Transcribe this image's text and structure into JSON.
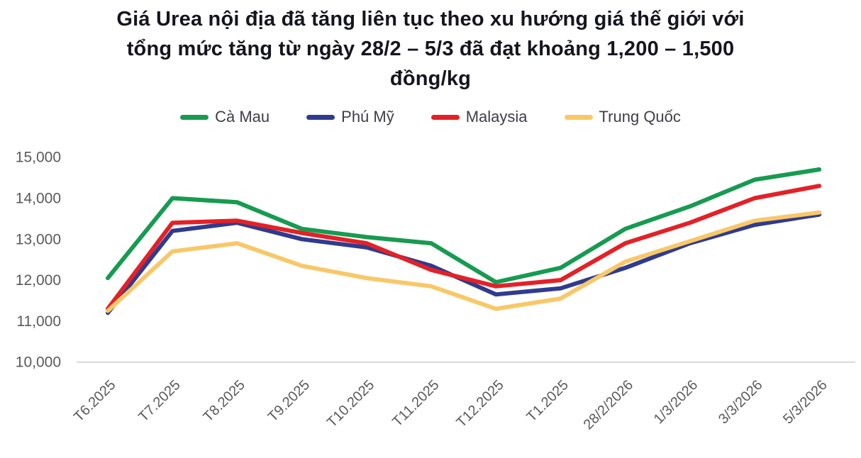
{
  "chart_data": {
    "type": "line",
    "title": "Giá Urea nội địa đã tăng liên tục theo xu hướng giá thế giới với\ntổng mức tăng từ ngày 28/2 – 5/3 đã đạt khoảng 1,200 – 1,500\nđồng/kg",
    "categories": [
      "T6.2025",
      "T7.2025",
      "T8.2025",
      "T9.2025",
      "T10.2025",
      "T11.2025",
      "T12.2025",
      "T1.2025",
      "28/2/2026",
      "1/3/2026",
      "3/3/2026",
      "5/3/2026"
    ],
    "series": [
      {
        "name": "Cà Mau",
        "color": "#169b50",
        "values": [
          12050,
          14000,
          13900,
          13250,
          13050,
          12900,
          11950,
          12300,
          13250,
          13800,
          14450,
          14700
        ]
      },
      {
        "name": "Phú Mỹ",
        "color": "#2f3b8f",
        "values": [
          11200,
          13200,
          13400,
          13000,
          12800,
          12350,
          11650,
          11800,
          12300,
          12900,
          13350,
          13600
        ]
      },
      {
        "name": "Malaysia",
        "color": "#e32127",
        "values": [
          11300,
          13400,
          13450,
          13150,
          12900,
          12250,
          11850,
          12000,
          12900,
          13400,
          14000,
          14300
        ]
      },
      {
        "name": "Trung Quốc",
        "color": "#f8c868",
        "values": [
          11250,
          12700,
          12900,
          12350,
          12050,
          11850,
          11300,
          11550,
          12450,
          12950,
          13450,
          13650
        ]
      }
    ],
    "xlabel": "",
    "ylabel": "",
    "ylim": [
      10000,
      15000
    ],
    "ytick_step": 1000,
    "ytick_format": "thousands-comma",
    "grid": false,
    "legend_position": "top",
    "x_label_rotation": -45
  }
}
